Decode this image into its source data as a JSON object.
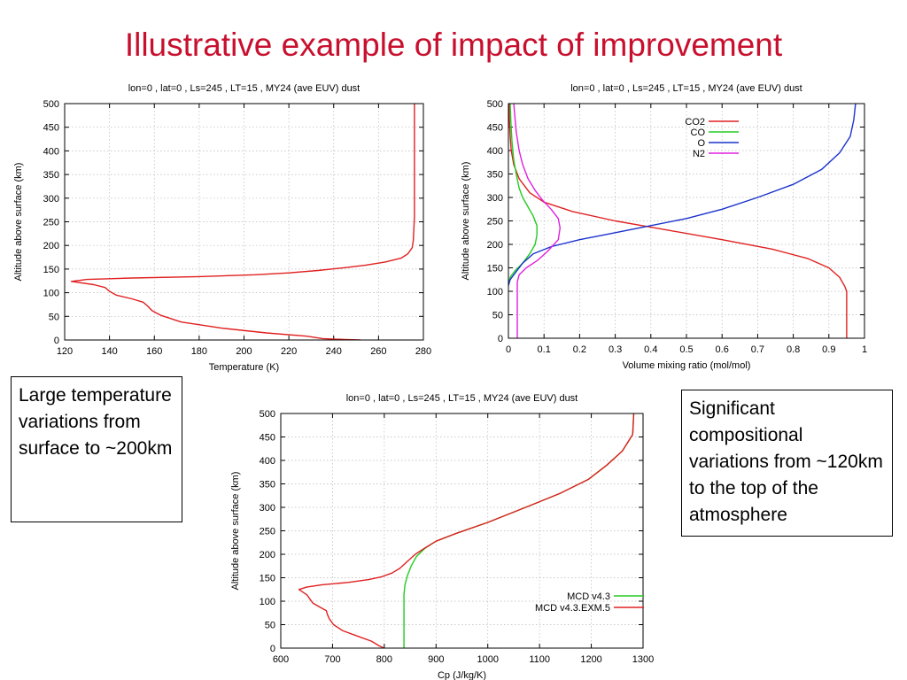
{
  "slide": {
    "title": "Illustrative example of impact of improvement",
    "callouts": [
      "Large temperature variations from surface to ~200km",
      "Significant compositional variations from ~120km to the top of the atmosphere"
    ]
  },
  "chart_data": [
    {
      "type": "line",
      "title": "lon=0 , lat=0 , Ls=245 , LT=15 , MY24 (ave EUV) dust",
      "xlabel": "Temperature (K)",
      "ylabel": "Altitude above surface (km)",
      "xlim": [
        120,
        280
      ],
      "ylim": [
        0,
        500
      ],
      "xticks": [
        120,
        140,
        160,
        180,
        200,
        220,
        240,
        260,
        280
      ],
      "yticks": [
        0,
        50,
        100,
        150,
        200,
        250,
        300,
        350,
        400,
        450,
        500
      ],
      "grid": true,
      "legend": null,
      "series": [
        {
          "name": "",
          "color": "#e02020",
          "points": [
            [
              252,
              0
            ],
            [
              245,
              1
            ],
            [
              235,
              3
            ],
            [
              228,
              8
            ],
            [
              210,
              15
            ],
            [
              190,
              25
            ],
            [
              172,
              38
            ],
            [
              163,
              52
            ],
            [
              159,
              62
            ],
            [
              157,
              72
            ],
            [
              155,
              80
            ],
            [
              150,
              87
            ],
            [
              143,
              95
            ],
            [
              140,
              103
            ],
            [
              138,
              111
            ],
            [
              133,
              117
            ],
            [
              123,
              124
            ],
            [
              130,
              128
            ],
            [
              150,
              131
            ],
            [
              180,
              134
            ],
            [
              205,
              138
            ],
            [
              220,
              142
            ],
            [
              233,
              147
            ],
            [
              245,
              153
            ],
            [
              254,
              158
            ],
            [
              263,
              165
            ],
            [
              270,
              173
            ],
            [
              273,
              182
            ],
            [
              275,
              195
            ],
            [
              275.5,
              210
            ],
            [
              276,
              260
            ],
            [
              276,
              350
            ],
            [
              276,
              430
            ],
            [
              276,
              500
            ]
          ]
        }
      ]
    },
    {
      "type": "line",
      "title": "lon=0 , lat=0 , Ls=245 , LT=15 , MY24 (ave EUV) dust",
      "xlabel": "Volume mixing ratio (mol/mol)",
      "ylabel": "Altitude above surface (km)",
      "xlim": [
        0,
        1
      ],
      "ylim": [
        0,
        500
      ],
      "xticks": [
        0,
        0.1,
        0.2,
        0.3,
        0.4,
        0.5,
        0.6,
        0.7,
        0.8,
        0.9,
        1
      ],
      "yticks": [
        0,
        50,
        100,
        150,
        200,
        250,
        300,
        350,
        400,
        450,
        500
      ],
      "grid": true,
      "legend": "top-right",
      "series": [
        {
          "name": "CO2",
          "color": "#e02020",
          "points": [
            [
              0.95,
              0
            ],
            [
              0.95,
              100
            ],
            [
              0.945,
              110
            ],
            [
              0.93,
              130
            ],
            [
              0.9,
              150
            ],
            [
              0.84,
              170
            ],
            [
              0.74,
              190
            ],
            [
              0.6,
              210
            ],
            [
              0.45,
              230
            ],
            [
              0.3,
              250
            ],
            [
              0.18,
              270
            ],
            [
              0.1,
              290
            ],
            [
              0.06,
              310
            ],
            [
              0.03,
              340
            ],
            [
              0.015,
              370
            ],
            [
              0.008,
              400
            ],
            [
              0.005,
              430
            ],
            [
              0.003,
              460
            ],
            [
              0.002,
              500
            ]
          ]
        },
        {
          "name": "CO",
          "color": "#22cc22",
          "points": [
            [
              0,
              115
            ],
            [
              0.005,
              130
            ],
            [
              0.02,
              145
            ],
            [
              0.04,
              160
            ],
            [
              0.06,
              180
            ],
            [
              0.075,
              200
            ],
            [
              0.08,
              220
            ],
            [
              0.08,
              240
            ],
            [
              0.07,
              260
            ],
            [
              0.055,
              280
            ],
            [
              0.04,
              300
            ],
            [
              0.03,
              320
            ],
            [
              0.022,
              350
            ],
            [
              0.015,
              380
            ],
            [
              0.01,
              420
            ],
            [
              0.007,
              460
            ],
            [
              0.005,
              500
            ]
          ]
        },
        {
          "name": "O",
          "color": "#1a33cc",
          "points": [
            [
              0,
              112
            ],
            [
              0.005,
              125
            ],
            [
              0.02,
              140
            ],
            [
              0.04,
              160
            ],
            [
              0.07,
              180
            ],
            [
              0.12,
              195
            ],
            [
              0.2,
              210
            ],
            [
              0.3,
              225
            ],
            [
              0.4,
              240
            ],
            [
              0.5,
              255
            ],
            [
              0.6,
              275
            ],
            [
              0.7,
              300
            ],
            [
              0.8,
              328
            ],
            [
              0.88,
              360
            ],
            [
              0.93,
              395
            ],
            [
              0.96,
              430
            ],
            [
              0.97,
              465
            ],
            [
              0.975,
              500
            ]
          ]
        },
        {
          "name": "N2",
          "color": "#e020e0",
          "points": [
            [
              0.025,
              0
            ],
            [
              0.025,
              120
            ],
            [
              0.03,
              135
            ],
            [
              0.05,
              150
            ],
            [
              0.08,
              165
            ],
            [
              0.11,
              185
            ],
            [
              0.14,
              210
            ],
            [
              0.145,
              235
            ],
            [
              0.14,
              255
            ],
            [
              0.12,
              275
            ],
            [
              0.095,
              295
            ],
            [
              0.075,
              315
            ],
            [
              0.055,
              340
            ],
            [
              0.04,
              370
            ],
            [
              0.03,
              400
            ],
            [
              0.022,
              440
            ],
            [
              0.015,
              500
            ]
          ]
        }
      ]
    },
    {
      "type": "line",
      "title": "lon=0 , lat=0 , Ls=245 , LT=15 , MY24 (ave EUV) dust",
      "xlabel": "Cp (J/kg/K)",
      "ylabel": "Altitude above surface (km)",
      "xlim": [
        600,
        1300
      ],
      "ylim": [
        0,
        500
      ],
      "xticks": [
        600,
        700,
        800,
        900,
        1000,
        1100,
        1200,
        1300
      ],
      "yticks": [
        0,
        50,
        100,
        150,
        200,
        250,
        300,
        350,
        400,
        450,
        500
      ],
      "grid": true,
      "legend": "bottom-right",
      "series": [
        {
          "name": "MCD v4.3",
          "color": "#22cc22",
          "points": [
            [
              838,
              0
            ],
            [
              838,
              115
            ],
            [
              840,
              135
            ],
            [
              845,
              155
            ],
            [
              852,
              175
            ],
            [
              862,
              195
            ],
            [
              878,
              212
            ],
            [
              900,
              228
            ],
            [
              940,
              245
            ],
            [
              1000,
              268
            ],
            [
              1080,
              303
            ],
            [
              1140,
              330
            ],
            [
              1195,
              360
            ],
            [
              1230,
              390
            ],
            [
              1260,
              420
            ],
            [
              1280,
              455
            ],
            [
              1282,
              500
            ]
          ]
        },
        {
          "name": "MCD v4.3.EXM.5",
          "color": "#e02020",
          "points": [
            [
              800,
              0
            ],
            [
              790,
              5
            ],
            [
              775,
              15
            ],
            [
              750,
              25
            ],
            [
              720,
              37
            ],
            [
              702,
              50
            ],
            [
              694,
              62
            ],
            [
              690,
              72
            ],
            [
              688,
              80
            ],
            [
              676,
              87
            ],
            [
              662,
              96
            ],
            [
              656,
              105
            ],
            [
              651,
              113
            ],
            [
              642,
              120
            ],
            [
              635,
              125
            ],
            [
              650,
              130
            ],
            [
              680,
              135
            ],
            [
              730,
              140
            ],
            [
              770,
              146
            ],
            [
              795,
              152
            ],
            [
              815,
              160
            ],
            [
              830,
              170
            ],
            [
              845,
              185
            ],
            [
              860,
              200
            ],
            [
              878,
              213
            ],
            [
              900,
              228
            ],
            [
              940,
              245
            ],
            [
              1000,
              268
            ],
            [
              1080,
              303
            ],
            [
              1140,
              330
            ],
            [
              1195,
              360
            ],
            [
              1230,
              390
            ],
            [
              1260,
              420
            ],
            [
              1280,
              455
            ],
            [
              1282,
              500
            ]
          ]
        }
      ]
    }
  ]
}
